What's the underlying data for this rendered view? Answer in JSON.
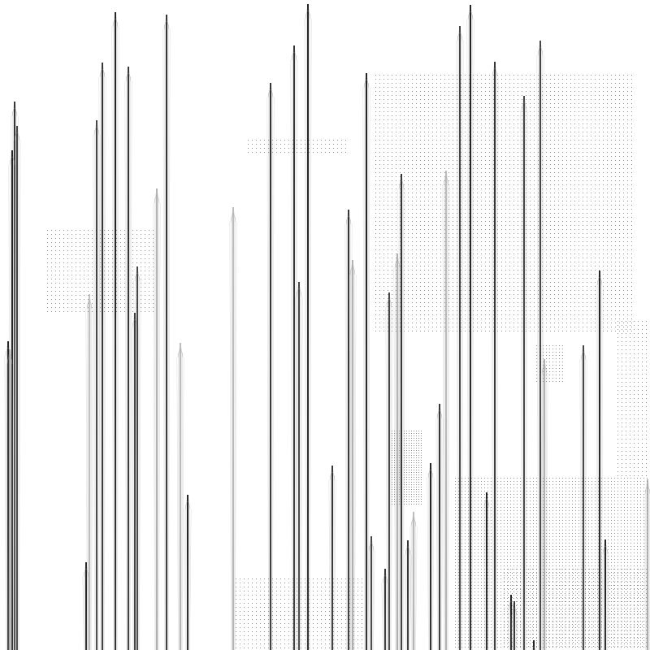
{
  "artwork": {
    "background_color": "#ffffff",
    "stroke_color_dark": "#1a1a1a",
    "stroke_color_light": "#9a9a9a",
    "dot_color": "#333333"
  }
}
